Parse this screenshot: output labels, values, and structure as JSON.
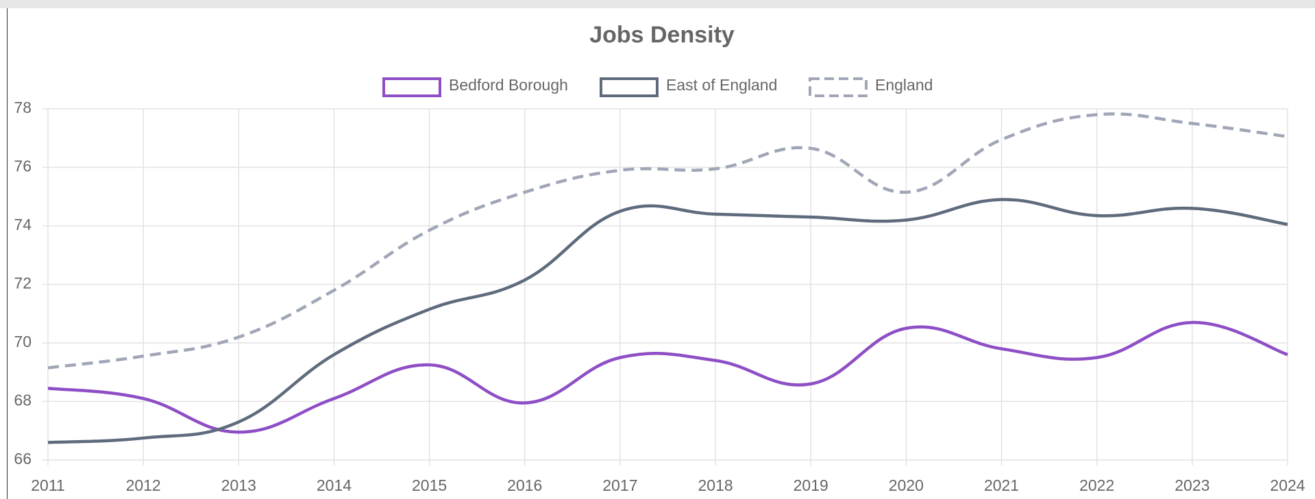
{
  "chart_data": {
    "type": "line",
    "title": "Jobs Density",
    "x": [
      2011,
      2012,
      2013,
      2014,
      2015,
      2016,
      2017,
      2018,
      2019,
      2020,
      2021,
      2022,
      2023,
      2024
    ],
    "series": [
      {
        "name": "Bedford Borough",
        "color": "#8e4ec6",
        "dash": false,
        "values": [
          68.45,
          68.1,
          66.95,
          68.1,
          69.25,
          67.95,
          69.5,
          69.4,
          68.6,
          70.5,
          69.8,
          69.5,
          70.7,
          69.6
        ]
      },
      {
        "name": "East of England",
        "color": "#5f6b7d",
        "dash": false,
        "values": [
          66.6,
          66.75,
          67.3,
          69.6,
          71.15,
          72.15,
          74.5,
          74.4,
          74.3,
          74.2,
          74.9,
          74.35,
          74.6,
          74.05
        ]
      },
      {
        "name": "England",
        "color": "#a0a6b6",
        "dash": true,
        "values": [
          69.15,
          69.55,
          70.2,
          71.8,
          73.85,
          75.15,
          75.9,
          75.95,
          76.65,
          75.15,
          76.95,
          77.8,
          77.5,
          77.05
        ]
      }
    ],
    "xlim": [
      2011,
      2024
    ],
    "xticks": [
      2011,
      2012,
      2013,
      2014,
      2015,
      2016,
      2017,
      2018,
      2019,
      2020,
      2021,
      2022,
      2023,
      2024
    ],
    "ylim": [
      66,
      78
    ],
    "yticks": [
      66,
      68,
      70,
      72,
      74,
      76,
      78
    ],
    "grid": true,
    "legend": "top"
  }
}
